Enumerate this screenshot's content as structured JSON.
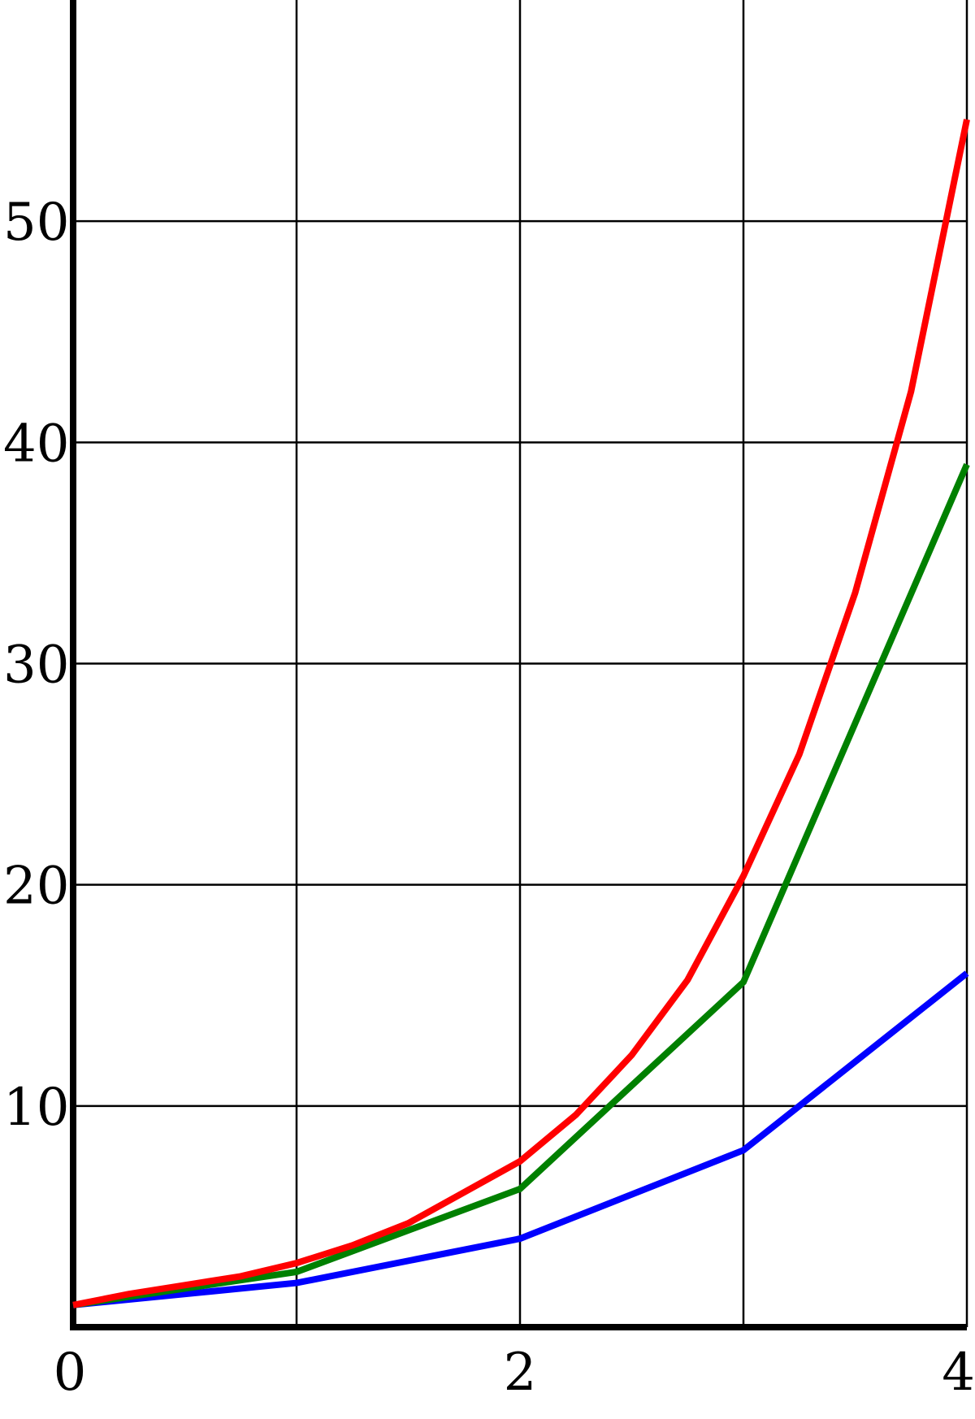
{
  "chart_data": {
    "type": "line",
    "title": "",
    "xlabel": "",
    "ylabel": "",
    "xlim": [
      0,
      4
    ],
    "ylim": [
      0,
      60
    ],
    "x_ticks": [
      0,
      1,
      2,
      3,
      4
    ],
    "x_tick_labels": [
      "0",
      "",
      "2",
      "",
      "4"
    ],
    "y_ticks": [
      10,
      20,
      30,
      40,
      50
    ],
    "y_tick_labels": [
      "10",
      "20",
      "30",
      "40",
      "50"
    ],
    "grid": true,
    "series": [
      {
        "color": "#0000ff",
        "x": [
          0,
          1,
          2,
          3,
          4
        ],
        "y": [
          1,
          2,
          4,
          8,
          16
        ]
      },
      {
        "color": "#008000",
        "x": [
          0,
          1,
          2,
          3,
          4
        ],
        "y": [
          1,
          2.5,
          6.25,
          15.6,
          39
        ]
      },
      {
        "color": "#ff0000",
        "x": [
          0,
          0.25,
          0.5,
          0.75,
          1,
          1.25,
          1.5,
          1.75,
          2,
          2.25,
          2.5,
          2.75,
          3,
          3.25,
          3.5,
          3.75,
          4
        ],
        "y": [
          1,
          1.5,
          1.9,
          2.3,
          2.9,
          3.7,
          4.7,
          6.1,
          7.5,
          9.6,
          12.3,
          15.7,
          20.4,
          25.9,
          33.2,
          42.3,
          54.6
        ]
      }
    ]
  }
}
